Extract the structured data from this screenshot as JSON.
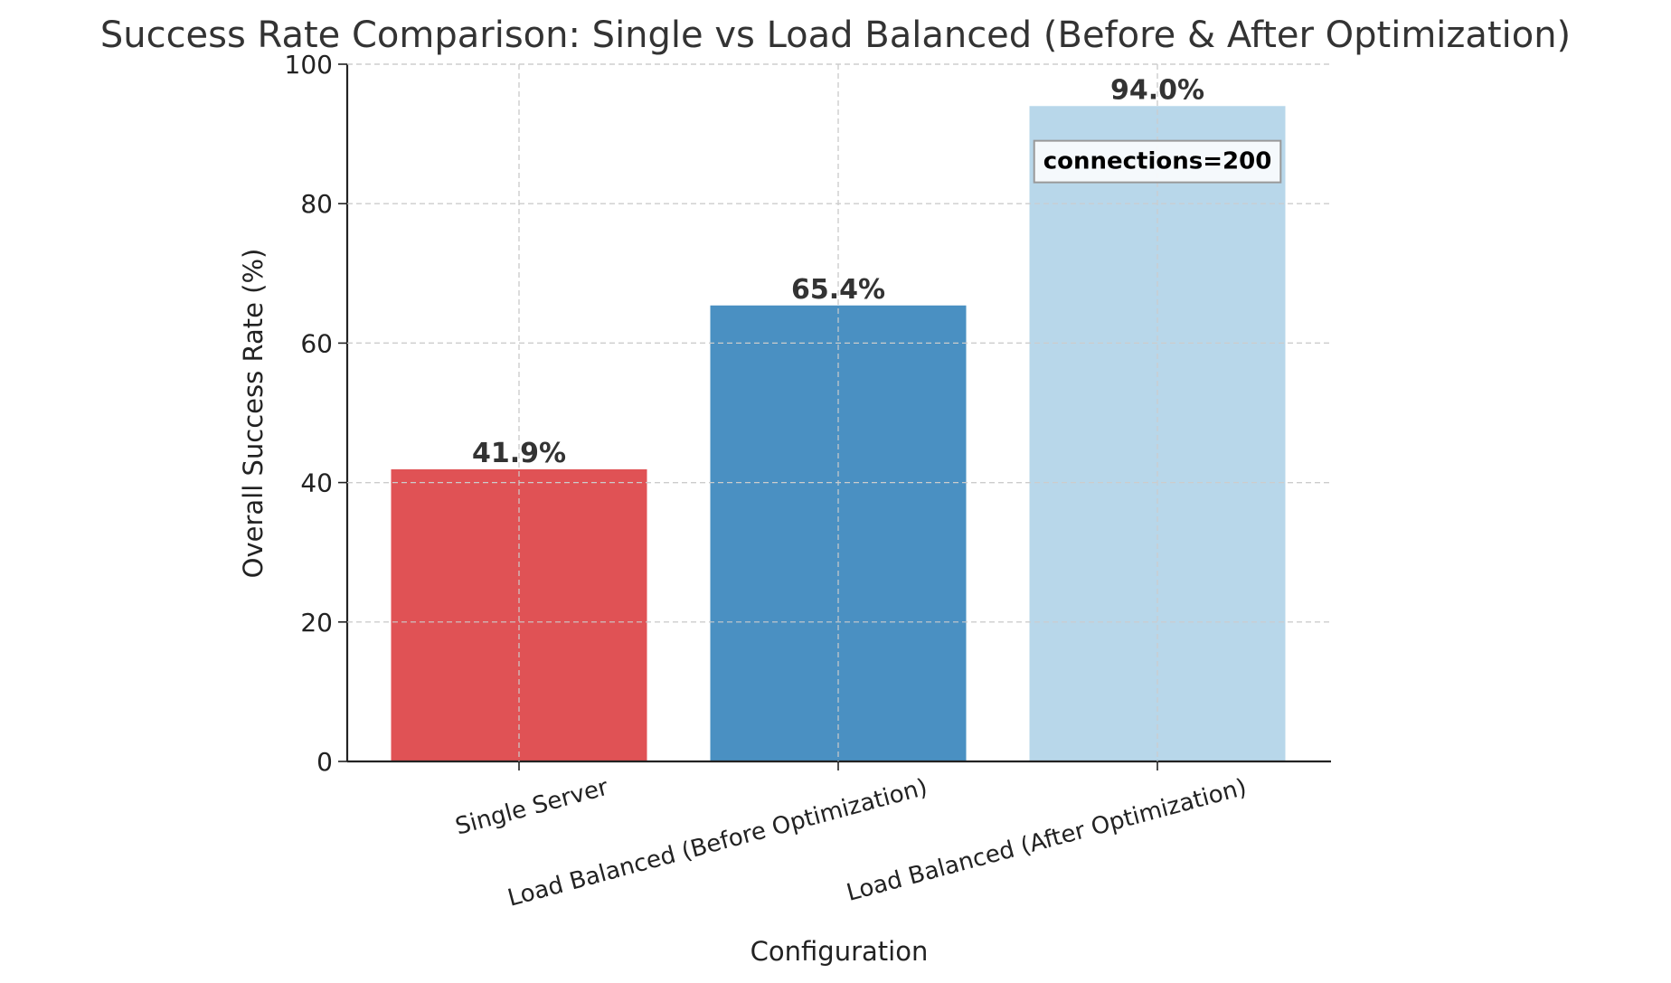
{
  "chart_data": {
    "type": "bar",
    "title": "Success Rate Comparison: Single vs Load Balanced (Before & After Optimization)",
    "xlabel": "Configuration",
    "ylabel": "Overall Success Rate (%)",
    "categories": [
      "Single Server",
      "Load Balanced (Before Optimization)",
      "Load Balanced (After Optimization)"
    ],
    "values": [
      41.9,
      65.4,
      94.0
    ],
    "value_labels": [
      "41.9%",
      "65.4%",
      "94.0%"
    ],
    "colors": [
      "#e05255",
      "#4a90c2",
      "#b8d7ea"
    ],
    "ylim": [
      0,
      100
    ],
    "yticks": [
      0,
      20,
      40,
      60,
      80,
      100
    ],
    "grid": true,
    "annotation": {
      "text": "connections=200",
      "category_index": 2,
      "y": 85
    }
  }
}
